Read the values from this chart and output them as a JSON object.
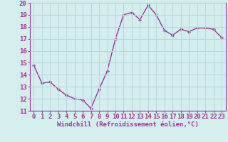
{
  "x": [
    0,
    1,
    2,
    3,
    4,
    5,
    6,
    7,
    8,
    9,
    10,
    11,
    12,
    13,
    14,
    15,
    16,
    17,
    18,
    19,
    20,
    21,
    22,
    23
  ],
  "y": [
    14.8,
    13.3,
    13.4,
    12.8,
    12.3,
    12.0,
    11.9,
    11.2,
    12.8,
    14.3,
    17.0,
    19.0,
    19.2,
    18.6,
    19.8,
    19.0,
    17.7,
    17.3,
    17.8,
    17.6,
    17.9,
    17.9,
    17.8,
    17.1
  ],
  "line_color": "#993399",
  "marker": "D",
  "marker_size": 2.0,
  "xlabel": "Windchill (Refroidissement éolien,°C)",
  "ylim": [
    11,
    20
  ],
  "xlim": [
    -0.5,
    23.5
  ],
  "yticks": [
    11,
    12,
    13,
    14,
    15,
    16,
    17,
    18,
    19,
    20
  ],
  "xticks": [
    0,
    1,
    2,
    3,
    4,
    5,
    6,
    7,
    8,
    9,
    10,
    11,
    12,
    13,
    14,
    15,
    16,
    17,
    18,
    19,
    20,
    21,
    22,
    23
  ],
  "bg_color": "#d4eeee",
  "grid_color": "#b8d8d8",
  "tick_color": "#993399",
  "xlabel_color": "#993399",
  "xlabel_fontsize": 6.5,
  "tick_fontsize": 6.5,
  "line_width": 1.0
}
